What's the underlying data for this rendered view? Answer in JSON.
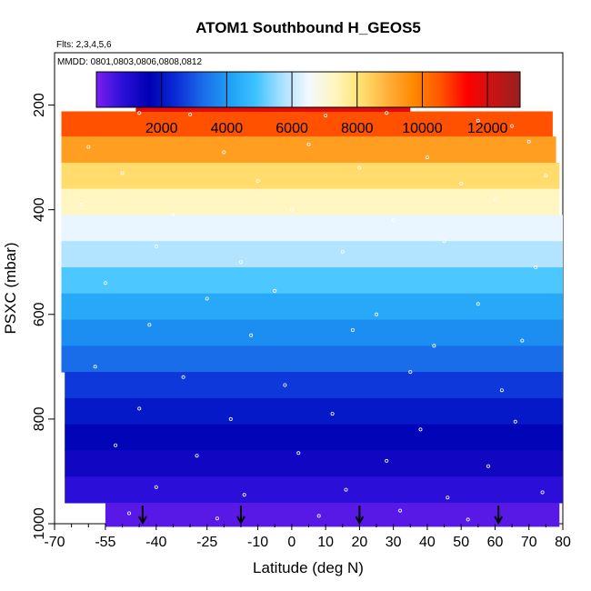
{
  "chart_data": {
    "type": "heatmap",
    "title": "ATOM1 Southbound H_GEOS5",
    "flights_text": "Flts: 2,3,4,5,6",
    "dates_text": "MMDD: 0801,0803,0806,0808,0812",
    "xlabel": "Latitude (deg N)",
    "ylabel": "PSXC (mbar)",
    "xlim": [
      -70,
      80
    ],
    "ylim": [
      1000,
      100
    ],
    "x_ticks": [
      -70,
      -55,
      -40,
      -25,
      -10,
      0,
      10,
      20,
      30,
      40,
      50,
      60,
      70,
      80
    ],
    "x_tick_labels": [
      "-70",
      "-55",
      "-40",
      "-25",
      "-10",
      "0",
      "10",
      "20",
      "30",
      "40",
      "50",
      "60",
      "70",
      "80"
    ],
    "x_minor_ticks": [
      -65,
      -60,
      -50,
      -45,
      -35,
      -30,
      -20,
      -15,
      -5,
      5,
      15,
      25,
      35,
      45,
      55,
      65,
      75
    ],
    "y_ticks": [
      200,
      400,
      600,
      800,
      1000
    ],
    "y_tick_labels": [
      "200",
      "400",
      "600",
      "800",
      "1000"
    ],
    "colorbar": {
      "range": [
        0,
        13000
      ],
      "ticks": [
        2000,
        4000,
        6000,
        8000,
        10000,
        12000
      ],
      "tick_labels": [
        "2000",
        "4000",
        "6000",
        "8000",
        "10000",
        "12000"
      ],
      "colors": [
        "#7a1ff0",
        "#2a0fd8",
        "#0000b4",
        "#0b2bd6",
        "#1a6ae8",
        "#1e9ff5",
        "#3cc2ff",
        "#a8e0ff",
        "#f2f8ff",
        "#fff6c0",
        "#ffe070",
        "#ffb03a",
        "#ff8800",
        "#ff5500",
        "#ff0000",
        "#c81414",
        "#962020"
      ]
    },
    "profiles": [
      {
        "lat_range": [
          -68,
          77
        ],
        "p_range": [
          212,
          260
        ],
        "value": 10600
      },
      {
        "lat_range": [
          -68,
          78
        ],
        "p_range": [
          260,
          310
        ],
        "value": 9300
      },
      {
        "lat_range": [
          -68,
          79
        ],
        "p_range": [
          310,
          360
        ],
        "value": 8200
      },
      {
        "lat_range": [
          -68,
          79
        ],
        "p_range": [
          360,
          410
        ],
        "value": 7300
      },
      {
        "lat_range": [
          -68,
          80
        ],
        "p_range": [
          410,
          460
        ],
        "value": 6400
      },
      {
        "lat_range": [
          -68,
          80
        ],
        "p_range": [
          460,
          510
        ],
        "value": 5800
      },
      {
        "lat_range": [
          -68,
          80
        ],
        "p_range": [
          510,
          560
        ],
        "value": 5000
      },
      {
        "lat_range": [
          -68,
          80
        ],
        "p_range": [
          560,
          610
        ],
        "value": 4300
      },
      {
        "lat_range": [
          -68,
          80
        ],
        "p_range": [
          610,
          660
        ],
        "value": 3800
      },
      {
        "lat_range": [
          -68,
          80
        ],
        "p_range": [
          660,
          710
        ],
        "value": 3300
      },
      {
        "lat_range": [
          -67,
          80
        ],
        "p_range": [
          710,
          760
        ],
        "value": 2600
      },
      {
        "lat_range": [
          -67,
          80
        ],
        "p_range": [
          760,
          810
        ],
        "value": 2100
      },
      {
        "lat_range": [
          -67,
          80
        ],
        "p_range": [
          810,
          860
        ],
        "value": 1700
      },
      {
        "lat_range": [
          -67,
          80
        ],
        "p_range": [
          860,
          910
        ],
        "value": 1300
      },
      {
        "lat_range": [
          -67,
          80
        ],
        "p_range": [
          910,
          960
        ],
        "value": 800
      },
      {
        "lat_range": [
          -55,
          79
        ],
        "p_range": [
          960,
          1005
        ],
        "value": 350
      },
      {
        "lat_range": [
          -46,
          35
        ],
        "p_range": [
          170,
          212
        ],
        "value": 11800
      }
    ],
    "sampled_points": [
      [
        -45,
        215
      ],
      [
        -30,
        218
      ],
      [
        10,
        220
      ],
      [
        28,
        215
      ],
      [
        55,
        230
      ],
      [
        65,
        240
      ],
      [
        -60,
        280
      ],
      [
        -20,
        290
      ],
      [
        5,
        275
      ],
      [
        40,
        300
      ],
      [
        70,
        270
      ],
      [
        -50,
        330
      ],
      [
        -10,
        345
      ],
      [
        20,
        320
      ],
      [
        50,
        350
      ],
      [
        75,
        335
      ],
      [
        -62,
        390
      ],
      [
        -35,
        410
      ],
      [
        0,
        400
      ],
      [
        30,
        420
      ],
      [
        60,
        380
      ],
      [
        -40,
        470
      ],
      [
        -15,
        500
      ],
      [
        15,
        480
      ],
      [
        45,
        460
      ],
      [
        72,
        510
      ],
      [
        -55,
        540
      ],
      [
        -25,
        570
      ],
      [
        -5,
        555
      ],
      [
        25,
        600
      ],
      [
        55,
        580
      ],
      [
        -42,
        620
      ],
      [
        -12,
        640
      ],
      [
        18,
        630
      ],
      [
        42,
        660
      ],
      [
        68,
        650
      ],
      [
        -58,
        700
      ],
      [
        -32,
        720
      ],
      [
        -2,
        735
      ],
      [
        35,
        710
      ],
      [
        62,
        745
      ],
      [
        -45,
        780
      ],
      [
        -18,
        800
      ],
      [
        12,
        790
      ],
      [
        38,
        820
      ],
      [
        66,
        805
      ],
      [
        -52,
        850
      ],
      [
        -28,
        870
      ],
      [
        2,
        865
      ],
      [
        28,
        880
      ],
      [
        58,
        890
      ],
      [
        -40,
        930
      ],
      [
        -14,
        945
      ],
      [
        16,
        935
      ],
      [
        46,
        950
      ],
      [
        74,
        940
      ],
      [
        -48,
        980
      ],
      [
        -22,
        990
      ],
      [
        8,
        985
      ],
      [
        32,
        975
      ],
      [
        52,
        992
      ]
    ],
    "markers": [
      -44,
      -15,
      20,
      61
    ]
  }
}
